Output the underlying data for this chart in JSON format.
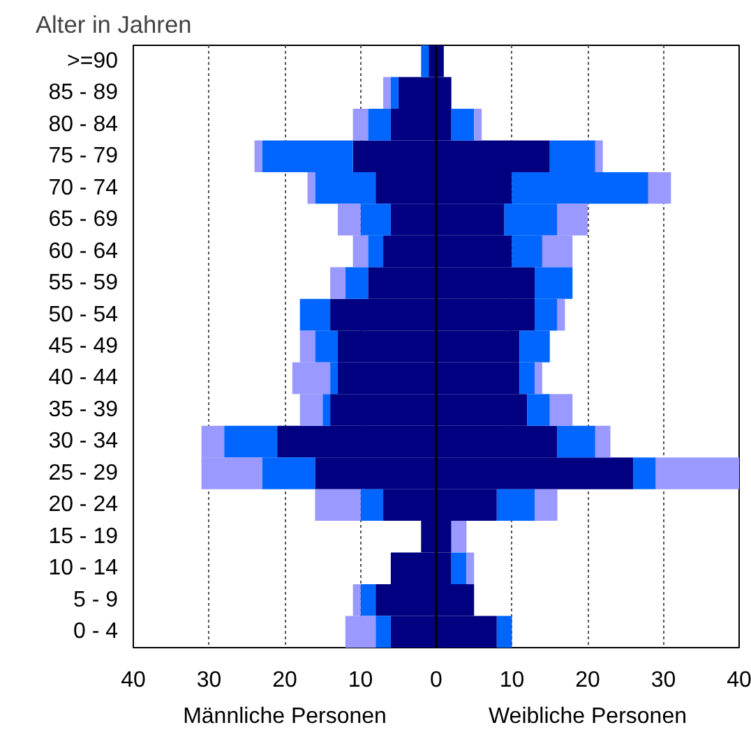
{
  "chart_data": {
    "type": "bar",
    "orientation": "horizontal",
    "stacked": true,
    "ylabel": "Alter in Jahren",
    "categories": [
      ">=90",
      "85 - 89",
      "80 - 84",
      "75 - 79",
      "70 - 74",
      "65 - 69",
      "60 - 64",
      "55 - 59",
      "50 - 54",
      "45 - 49",
      "40 - 44",
      "35 - 39",
      "30 - 34",
      "25 - 29",
      "20 - 24",
      "15 - 19",
      "10 - 14",
      "5 - 9",
      "0 - 4"
    ],
    "series": [
      {
        "color": "#000080",
        "values": [
          -1,
          -5,
          -6,
          -11,
          -8,
          -6,
          -7,
          -9,
          -14,
          -13,
          -13,
          -14,
          -21,
          -16,
          -7,
          -2,
          -6,
          -8,
          -6
        ]
      },
      {
        "color": "#0066ff",
        "values": [
          -1,
          -1,
          -3,
          -12,
          -8,
          -4,
          -2,
          -3,
          -4,
          -3,
          -1,
          -1,
          -7,
          -7,
          -3,
          0,
          0,
          -2,
          -2
        ]
      },
      {
        "color": "#9999ff",
        "values": [
          0,
          -1,
          -2,
          -1,
          -1,
          -3,
          -2,
          -2,
          0,
          -2,
          -5,
          -3,
          -3,
          -8,
          -6,
          0,
          0,
          -1,
          -4
        ]
      },
      {
        "color": "#000080",
        "values": [
          1,
          2,
          2,
          15,
          10,
          9,
          10,
          13,
          13,
          11,
          11,
          12,
          16,
          26,
          8,
          2,
          2,
          5,
          8
        ]
      },
      {
        "color": "#0066ff",
        "values": [
          0,
          0,
          3,
          6,
          18,
          7,
          4,
          5,
          3,
          4,
          2,
          3,
          5,
          3,
          5,
          0,
          2,
          0,
          2
        ]
      },
      {
        "color": "#9999ff",
        "values": [
          0,
          0,
          1,
          1,
          3,
          4,
          4,
          0,
          1,
          0,
          1,
          3,
          2,
          11,
          3,
          2,
          1,
          0,
          0
        ]
      }
    ],
    "xlim": [
      -40,
      40
    ],
    "xticks": [
      {
        "value": -40,
        "label": "40"
      },
      {
        "value": -30,
        "label": "30"
      },
      {
        "value": -20,
        "label": "20"
      },
      {
        "value": -10,
        "label": "10"
      },
      0,
      10,
      20,
      30,
      40
    ],
    "grid": "x",
    "ref_lines": [
      {
        "axis": "x",
        "value": 0,
        "color": "#000000",
        "line_style": "solid"
      }
    ],
    "annotations": [
      "Männliche Personen",
      "Weibliche Personen"
    ]
  }
}
